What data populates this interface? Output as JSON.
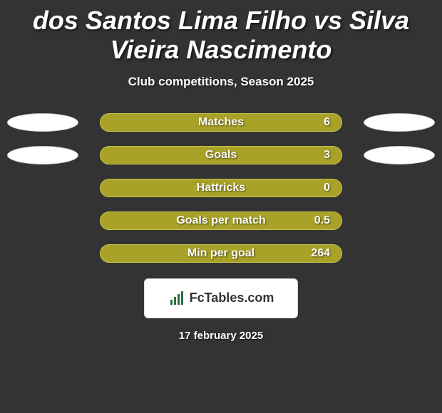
{
  "colors": {
    "background": "#333333",
    "text": "#ffffff",
    "bar_fill": "#a9a228",
    "bar_border": "#c9c24a",
    "oval_fill": "#ffffff",
    "oval_border": "#cccccc",
    "footer_bg": "#ffffff",
    "footer_border": "#dddddd",
    "footer_text": "#333333",
    "icon_color": "#2a6f3e"
  },
  "title": {
    "text": "dos Santos Lima Filho vs Silva Vieira Nascimento",
    "fontsize": 36
  },
  "subtitle": {
    "text": "Club competitions, Season 2025",
    "fontsize": 17
  },
  "rows": [
    {
      "label": "Matches",
      "value": "6",
      "left_oval": true,
      "right_oval": true,
      "label_fontsize": 16,
      "value_fontsize": 16
    },
    {
      "label": "Goals",
      "value": "3",
      "left_oval": true,
      "right_oval": true,
      "label_fontsize": 16,
      "value_fontsize": 16
    },
    {
      "label": "Hattricks",
      "value": "0",
      "left_oval": false,
      "right_oval": false,
      "label_fontsize": 16,
      "value_fontsize": 16
    },
    {
      "label": "Goals per match",
      "value": "0.5",
      "left_oval": false,
      "right_oval": false,
      "label_fontsize": 16,
      "value_fontsize": 16
    },
    {
      "label": "Min per goal",
      "value": "264",
      "left_oval": false,
      "right_oval": false,
      "label_fontsize": 16,
      "value_fontsize": 16
    }
  ],
  "footer": {
    "brand": "FcTables.com",
    "fontsize": 18,
    "icon": "bar-chart"
  },
  "date": {
    "text": "17 february 2025",
    "fontsize": 15
  }
}
